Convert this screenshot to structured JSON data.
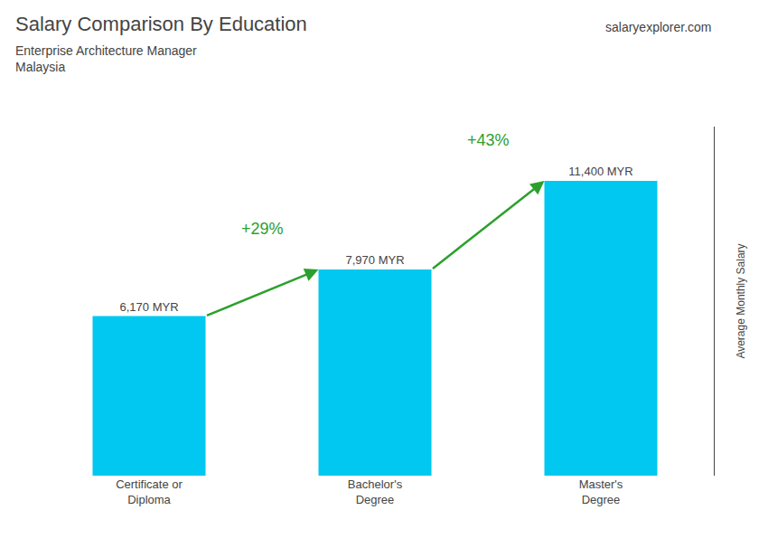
{
  "chart_data": {
    "type": "bar",
    "title": "Salary Comparison By Education",
    "subtitle": [
      "Enterprise Architecture Manager",
      "Malaysia"
    ],
    "categories": [
      "Certificate or\nDiploma",
      "Bachelor's\nDegree",
      "Master's\nDegree"
    ],
    "values": [
      6170,
      7970,
      11400
    ],
    "value_labels": [
      "6,170 MYR",
      "7,970 MYR",
      "11,400 MYR"
    ],
    "data_labels": true,
    "color": "#00c8f0",
    "ylabel": "Average Monthly Salary",
    "ylim": [
      0,
      13500
    ],
    "tick_labels": "x",
    "grid": false,
    "annotations": [
      {
        "text": "+29%",
        "from": "Certificate or\nDiploma",
        "to": "Bachelor's\nDegree"
      },
      {
        "text": "+43%",
        "from": "Bachelor's\nDegree",
        "to": "Master's\nDegree"
      },
      {
        "text": "salaryexplorer.com"
      }
    ]
  }
}
